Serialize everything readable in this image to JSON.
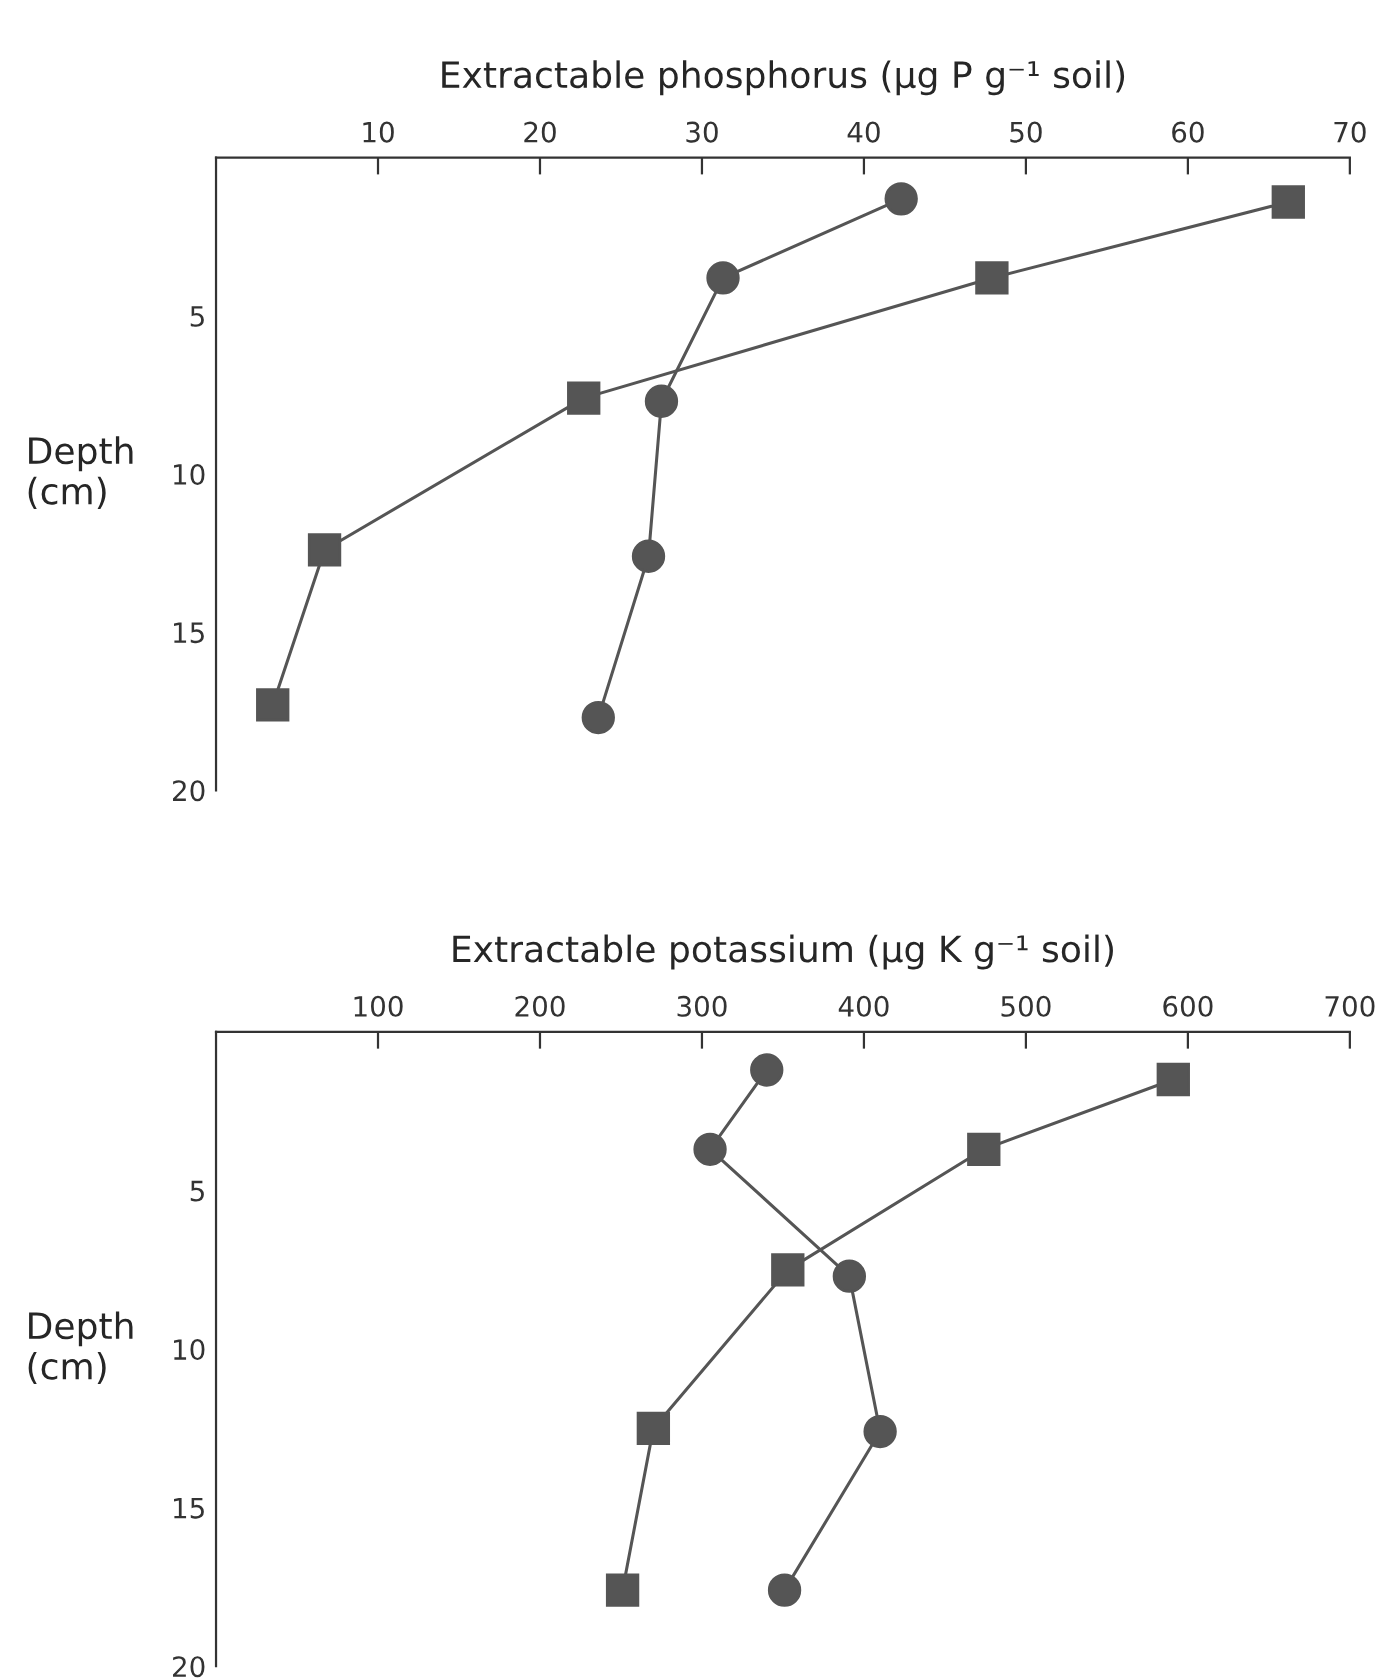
{
  "chart_data": [
    {
      "type": "line",
      "xlabel": "Extractable phosphorus (μg P g⁻¹ soil)",
      "ylabel": "Depth\n(cm)",
      "xlim": [
        0,
        70
      ],
      "xticks": [
        10,
        20,
        30,
        40,
        50,
        60,
        70
      ],
      "ylim": [
        20,
        0
      ],
      "yticks": [
        5,
        10,
        15,
        20
      ],
      "grid": false,
      "legend": false,
      "series": [
        {
          "color": "#555555",
          "marker": "circle",
          "x": [
            42.3,
            31.3,
            27.5,
            26.7,
            23.6
          ],
          "values": [
            1.3,
            3.8,
            7.7,
            12.6,
            17.7
          ]
        },
        {
          "color": "#555555",
          "marker": "square",
          "x": [
            66.2,
            47.9,
            22.7,
            6.7,
            3.5
          ],
          "values": [
            1.4,
            3.8,
            7.6,
            12.4,
            17.3
          ]
        }
      ]
    },
    {
      "type": "line",
      "xlabel": "Extractable potassium (μg K g⁻¹ soil)",
      "ylabel": "Depth\n(cm)",
      "xlim": [
        0,
        700
      ],
      "xticks": [
        100,
        200,
        300,
        400,
        500,
        600,
        700
      ],
      "ylim": [
        20,
        0
      ],
      "yticks": [
        5,
        10,
        15,
        20
      ],
      "grid": false,
      "legend": false,
      "series": [
        {
          "color": "#555555",
          "marker": "circle",
          "x": [
            340,
            305,
            391,
            410,
            351
          ],
          "values": [
            1.2,
            3.7,
            7.7,
            12.6,
            17.6
          ]
        },
        {
          "color": "#555555",
          "marker": "square",
          "x": [
            591,
            474,
            353,
            270,
            251
          ],
          "values": [
            1.5,
            3.7,
            7.5,
            12.5,
            17.6
          ]
        }
      ]
    }
  ]
}
